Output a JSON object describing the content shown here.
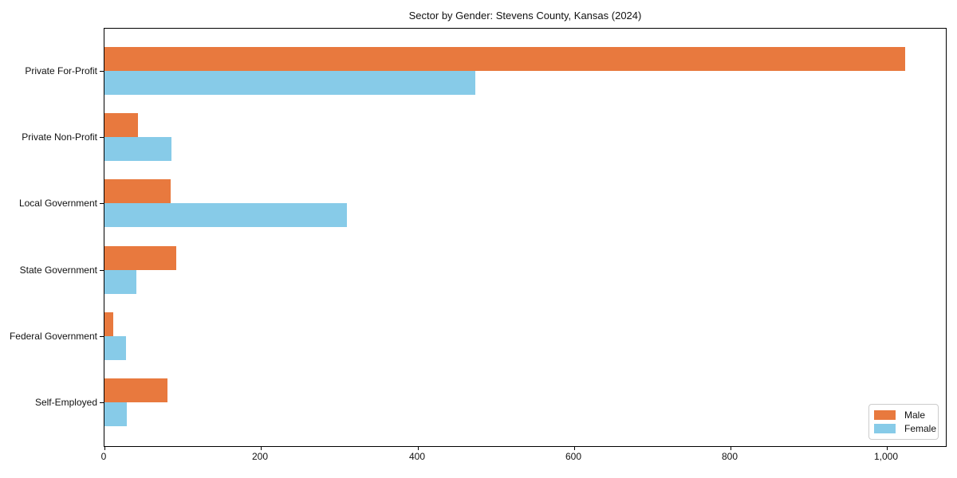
{
  "title": "Sector by Gender: Stevens County, Kansas (2024)",
  "chart_data": {
    "type": "bar",
    "orientation": "horizontal",
    "title": "Sector by Gender: Stevens County, Kansas (2024)",
    "categories": [
      "Private For-Profit",
      "Private Non-Profit",
      "Local Government",
      "State Government",
      "Federal Government",
      "Self-Employed"
    ],
    "series": [
      {
        "name": "Male",
        "color": "#E8793E",
        "values": [
          1023,
          43,
          85,
          92,
          11,
          80
        ]
      },
      {
        "name": "Female",
        "color": "#87CBE8",
        "values": [
          474,
          86,
          310,
          41,
          28,
          29
        ]
      }
    ],
    "xlabel": "",
    "ylabel": "",
    "xlim": [
      0,
      1075
    ],
    "xticks": [
      {
        "value": 0,
        "label": "0"
      },
      {
        "value": 200,
        "label": "200"
      },
      {
        "value": 400,
        "label": "400"
      },
      {
        "value": 600,
        "label": "600"
      },
      {
        "value": 800,
        "label": "800"
      },
      {
        "value": 1000,
        "label": "1,000"
      }
    ],
    "grid": false,
    "legend": {
      "position": "lower right",
      "entries": [
        "Male",
        "Female"
      ]
    }
  }
}
